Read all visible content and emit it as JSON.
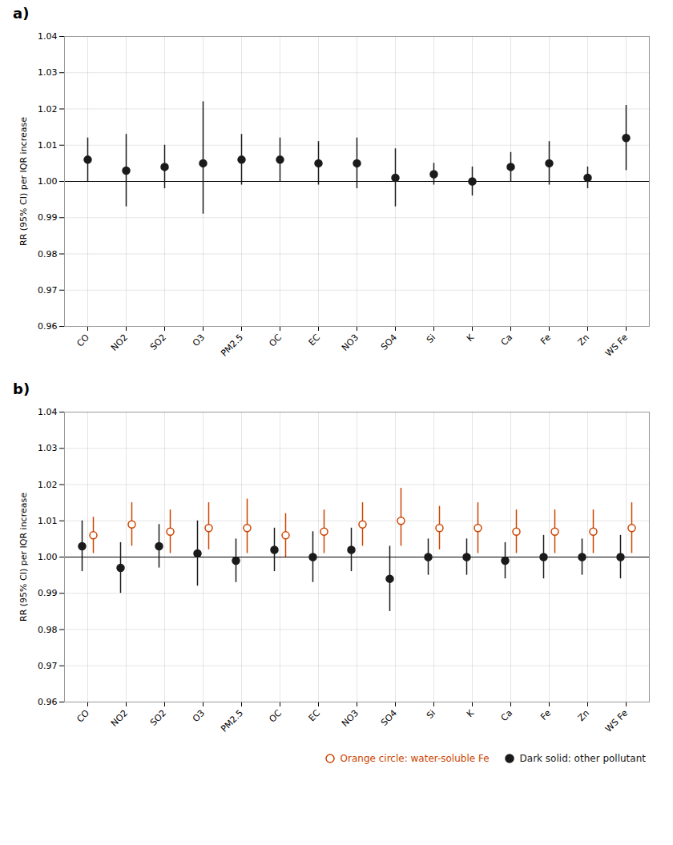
{
  "chart_data": [
    {
      "type": "scatter",
      "title": "a)",
      "categories": [
        "CO",
        "NO2",
        "SO2",
        "O3",
        "PM2.5",
        "OC",
        "EC",
        "NO3",
        "SO4",
        "Si",
        "K",
        "Ca",
        "Fe",
        "Zn",
        "WS Fe"
      ],
      "values": [
        1.006,
        1.003,
        1.004,
        1.005,
        1.006,
        1.006,
        1.005,
        1.005,
        1.001,
        1.002,
        1.0,
        1.004,
        1.005,
        1.001,
        1.012
      ],
      "ci_lo": [
        1.0,
        0.993,
        0.998,
        0.991,
        0.999,
        1.0,
        0.999,
        0.998,
        0.993,
        0.999,
        0.996,
        1.0,
        0.999,
        0.998,
        1.003
      ],
      "ci_hi": [
        1.012,
        1.013,
        1.01,
        1.022,
        1.013,
        1.012,
        1.011,
        1.012,
        1.009,
        1.005,
        1.004,
        1.008,
        1.011,
        1.004,
        1.021
      ],
      "color": "#1a1a1a",
      "marker": "filled",
      "ylabel": "RR (95% CI) per IQR increase",
      "ylim": [
        0.96,
        1.04
      ],
      "yticks": [
        0.96,
        0.97,
        0.98,
        0.99,
        {
          "value": 1.0,
          "label": "1.00"
        },
        1.01,
        1.02,
        1.03,
        1.04
      ],
      "grid": true,
      "ref_line": 1.0
    },
    {
      "type": "scatter",
      "title": "b)",
      "categories": [
        "CO",
        "NO2",
        "SO2",
        "O3",
        "PM2.5",
        "OC",
        "EC",
        "NO3",
        "SO4",
        "Si",
        "K",
        "Ca",
        "Fe",
        "Zn",
        "WS Fe"
      ],
      "series": [
        {
          "name": "Orange circle: water-soluble Fe",
          "color": "#CC4400",
          "marker": "open",
          "values": [
            1.006,
            1.009,
            1.007,
            1.008,
            1.008,
            1.006,
            1.007,
            1.009,
            1.01,
            1.008,
            1.008,
            1.007,
            1.007,
            1.007,
            1.008
          ],
          "ci_lo": [
            1.001,
            1.003,
            1.001,
            1.002,
            1.001,
            1.0,
            1.001,
            1.003,
            1.003,
            1.002,
            1.001,
            1.001,
            1.001,
            1.001,
            1.001
          ],
          "ci_hi": [
            1.011,
            1.015,
            1.013,
            1.015,
            1.016,
            1.012,
            1.013,
            1.015,
            1.019,
            1.014,
            1.015,
            1.013,
            1.013,
            1.013,
            1.015
          ]
        },
        {
          "name": "Dark solid: other pollutant",
          "color": "#1a1a1a",
          "marker": "filled",
          "values": [
            1.003,
            0.997,
            1.003,
            1.001,
            0.999,
            1.002,
            1.0,
            1.002,
            0.994,
            1.0,
            1.0,
            0.999,
            1.0,
            1.0,
            1.0
          ],
          "ci_lo": [
            0.996,
            0.99,
            0.997,
            0.992,
            0.993,
            0.996,
            0.993,
            0.996,
            0.985,
            0.995,
            0.995,
            0.994,
            0.994,
            0.995,
            0.994
          ],
          "ci_hi": [
            1.01,
            1.004,
            1.009,
            1.01,
            1.005,
            1.008,
            1.007,
            1.008,
            1.003,
            1.005,
            1.005,
            1.004,
            1.006,
            1.005,
            1.006
          ]
        }
      ],
      "ylabel": "RR (95% CI) per IQR increase",
      "ylim": [
        0.96,
        1.04
      ],
      "yticks": [
        0.96,
        0.97,
        0.98,
        0.99,
        {
          "value": 1.0,
          "label": "1.00"
        },
        1.01,
        1.02,
        1.03,
        1.04
      ],
      "grid": true,
      "ref_line": 1.0,
      "legend": "lower right"
    }
  ]
}
